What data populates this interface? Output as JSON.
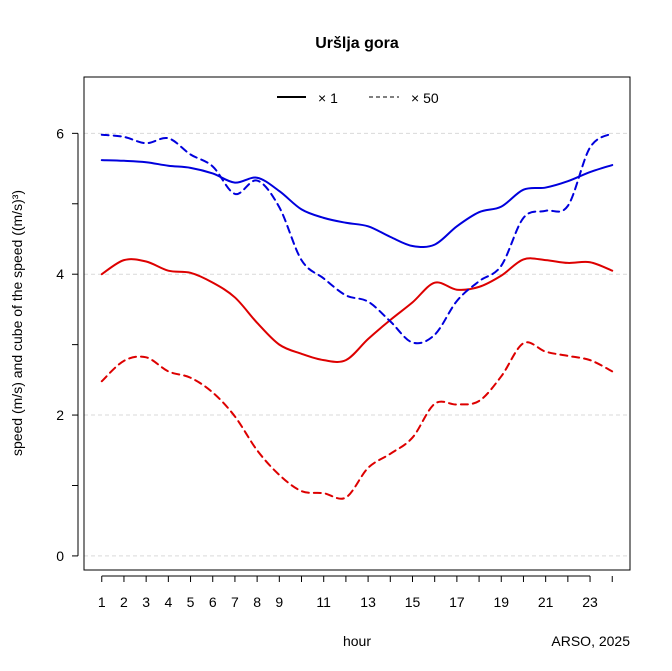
{
  "chart_data": {
    "type": "line",
    "title": "Uršlja gora",
    "xlabel": "hour",
    "ylabel": "speed (m/s) and cube of the speed ((m/s)³)",
    "credit": "ARSO, 2025",
    "legend": {
      "placement": "top-center",
      "entries": [
        {
          "label": "× 1",
          "linestyle": "solid"
        },
        {
          "label": "×  50",
          "linestyle": "dashed"
        }
      ]
    },
    "x_ticks": [
      1,
      2,
      3,
      4,
      5,
      6,
      7,
      8,
      9,
      11,
      13,
      15,
      17,
      19,
      21,
      23
    ],
    "y_ticks": [
      0,
      2,
      4,
      6
    ],
    "xlim": [
      0.2,
      24.8
    ],
    "ylim": [
      -0.2,
      6.8
    ],
    "grid": "horizontal dashed at y ticks",
    "x": [
      1,
      2,
      3,
      4,
      5,
      6,
      7,
      8,
      9,
      10,
      11,
      12,
      13,
      14,
      15,
      16,
      17,
      18,
      19,
      20,
      21,
      22,
      23,
      24
    ],
    "series": [
      {
        "color": "#0000dd",
        "linestyle": "solid",
        "values": [
          5.62,
          5.61,
          5.59,
          5.54,
          5.51,
          5.43,
          5.3,
          5.37,
          5.18,
          4.92,
          4.8,
          4.73,
          4.68,
          4.53,
          4.4,
          4.42,
          4.68,
          4.88,
          4.96,
          5.2,
          5.23,
          5.32,
          5.45,
          5.55
        ]
      },
      {
        "color": "#dd0000",
        "linestyle": "solid",
        "values": [
          4.0,
          4.2,
          4.18,
          4.05,
          4.02,
          3.88,
          3.67,
          3.31,
          3.0,
          2.87,
          2.78,
          2.78,
          3.08,
          3.35,
          3.6,
          3.88,
          3.78,
          3.82,
          3.98,
          4.21,
          4.2,
          4.16,
          4.17,
          4.05
        ]
      },
      {
        "color": "#0000dd",
        "linestyle": "dashed",
        "values": [
          5.98,
          5.95,
          5.86,
          5.93,
          5.7,
          5.53,
          5.14,
          5.33,
          4.95,
          4.2,
          3.94,
          3.7,
          3.61,
          3.33,
          3.03,
          3.14,
          3.62,
          3.9,
          4.12,
          4.8,
          4.9,
          4.97,
          5.8,
          6.0
        ]
      },
      {
        "color": "#dd0000",
        "linestyle": "dashed",
        "values": [
          2.48,
          2.77,
          2.82,
          2.62,
          2.53,
          2.32,
          1.98,
          1.5,
          1.15,
          0.92,
          0.89,
          0.83,
          1.25,
          1.45,
          1.68,
          2.16,
          2.15,
          2.2,
          2.55,
          3.02,
          2.9,
          2.84,
          2.78,
          2.62
        ]
      }
    ]
  }
}
